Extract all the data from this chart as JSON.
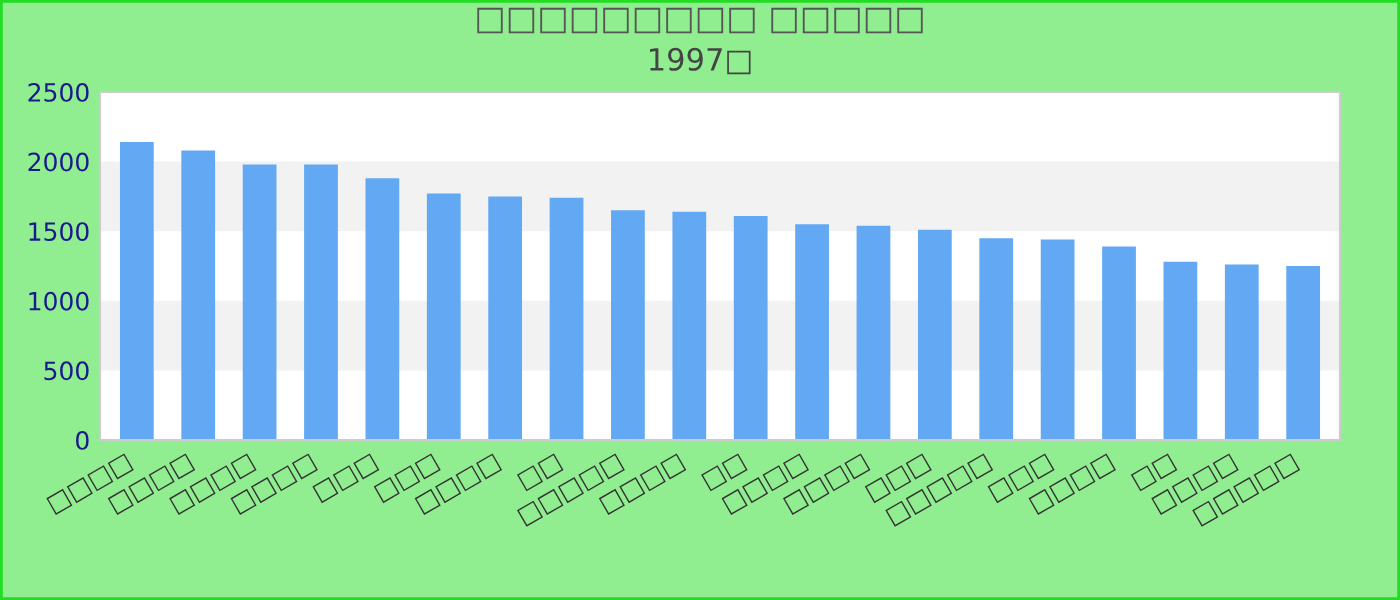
{
  "chart_data": {
    "type": "bar",
    "title": "□□□□□□□□□ □□□□□",
    "subtitle": "1997□",
    "categories": [
      "□□□□",
      "□□□□",
      "□□□□",
      "□□□□",
      "□□□",
      "□□□",
      "□□□□",
      "□□",
      "□□□□□",
      "□□□□",
      "□□",
      "□□□□",
      "□□□□",
      "□□□",
      "□□□□□",
      "□□□",
      "□□□□",
      "□□",
      "□□□□",
      "□□□□□"
    ],
    "values": [
      2140,
      2080,
      1980,
      1980,
      1880,
      1770,
      1750,
      1740,
      1650,
      1640,
      1610,
      1550,
      1540,
      1510,
      1450,
      1440,
      1390,
      1280,
      1260,
      1250
    ],
    "color": "#62a8f3",
    "ylim": [
      0,
      2500
    ],
    "yticks": [
      0,
      500,
      1000,
      1500,
      2000,
      2500
    ],
    "bands": [
      {
        "axis": "y",
        "from": 500,
        "to": 1000,
        "color": "#f2f2f2"
      },
      {
        "axis": "y",
        "from": 1500,
        "to": 2000,
        "color": "#f2f2f2"
      }
    ]
  }
}
